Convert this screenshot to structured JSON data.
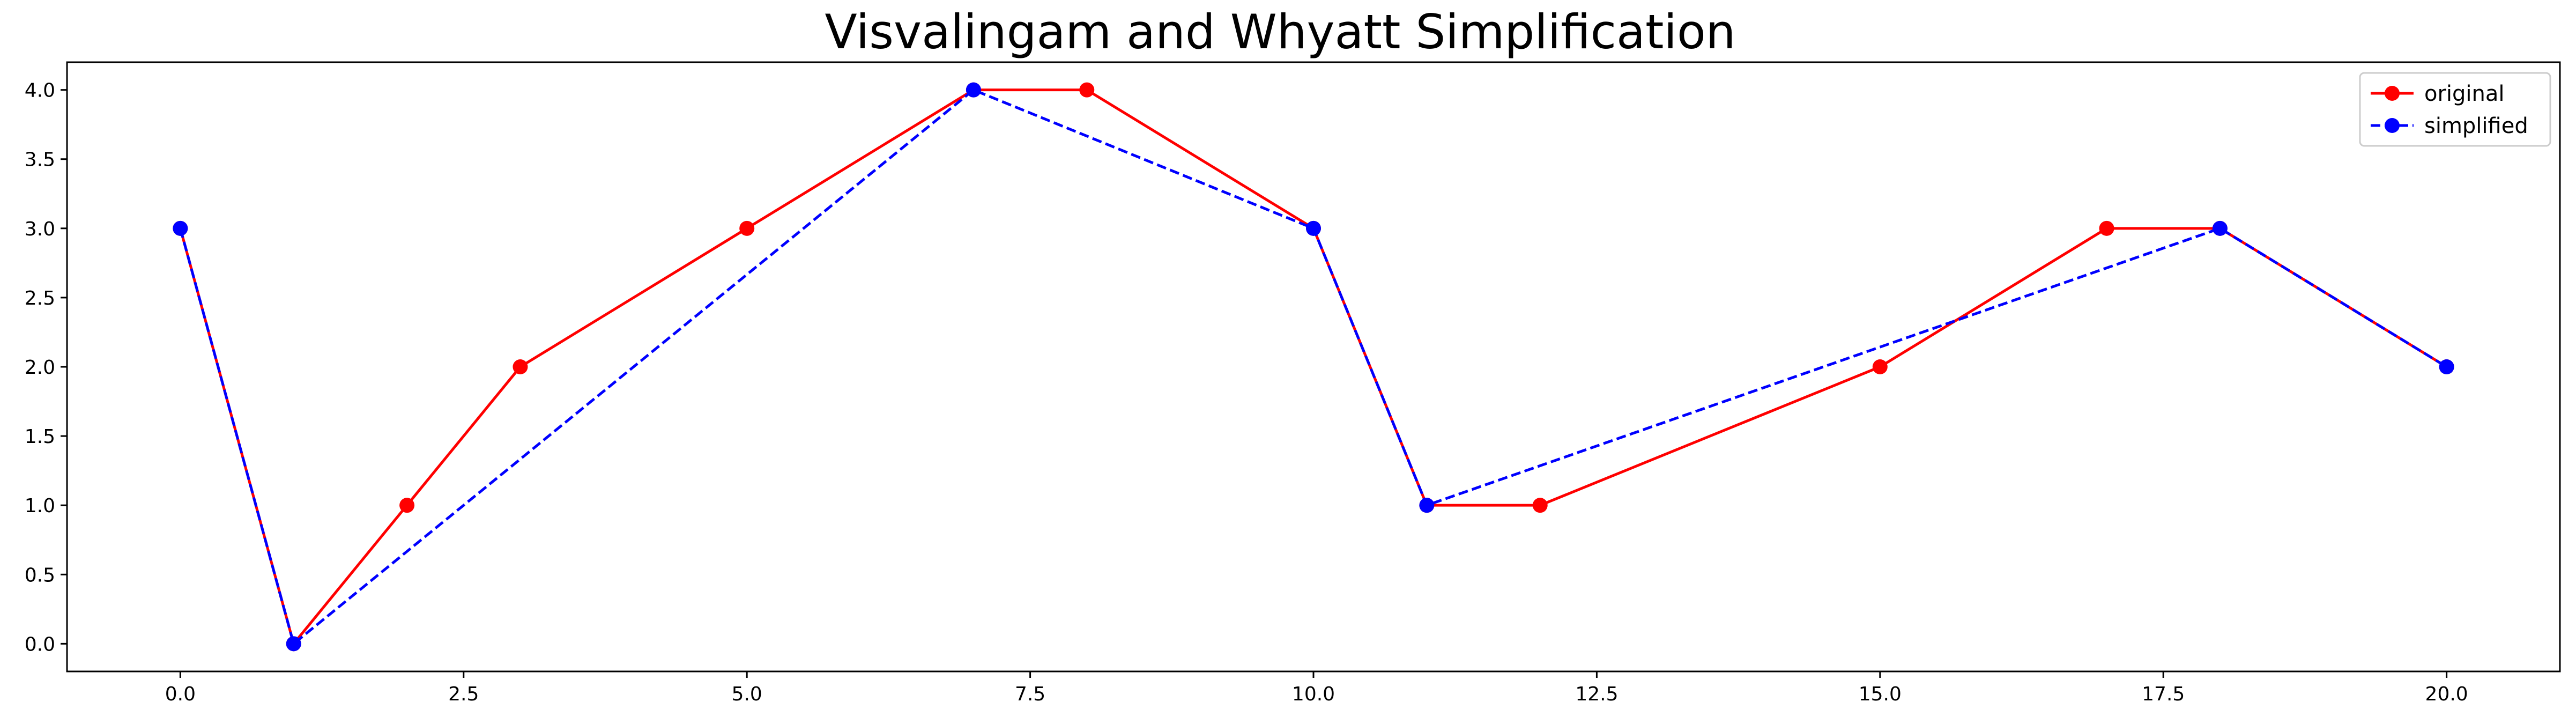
{
  "chart_data": {
    "type": "line",
    "title": "Visvalingam and Whyatt Simplification",
    "xlabel": "",
    "ylabel": "",
    "xlim": [
      -1,
      21
    ],
    "ylim": [
      -0.2,
      4.2
    ],
    "x_ticks": [
      0.0,
      2.5,
      5.0,
      7.5,
      10.0,
      12.5,
      15.0,
      17.5,
      20.0
    ],
    "x_tick_labels": [
      "0.0",
      "2.5",
      "5.0",
      "7.5",
      "10.0",
      "12.5",
      "15.0",
      "17.5",
      "20.0"
    ],
    "y_ticks": [
      0.0,
      0.5,
      1.0,
      1.5,
      2.0,
      2.5,
      3.0,
      3.5,
      4.0
    ],
    "y_tick_labels": [
      "0.0",
      "0.5",
      "1.0",
      "1.5",
      "2.0",
      "2.5",
      "3.0",
      "3.5",
      "4.0"
    ],
    "grid": false,
    "legend_position": "top-right",
    "series": [
      {
        "name": "original",
        "color": "#ff0000",
        "line_style": "solid",
        "marker": "circle",
        "x": [
          0,
          1,
          2,
          3,
          5,
          7,
          8,
          10,
          11,
          12,
          15,
          17,
          18,
          20
        ],
        "y": [
          3,
          0,
          1,
          2,
          3,
          4,
          4,
          3,
          1,
          1,
          2,
          3,
          3,
          2
        ]
      },
      {
        "name": "simplified",
        "color": "#0000ff",
        "line_style": "dashed",
        "marker": "circle",
        "x": [
          0,
          1,
          7,
          10,
          11,
          18,
          20
        ],
        "y": [
          3,
          0,
          4,
          3,
          1,
          3,
          2
        ]
      }
    ]
  }
}
